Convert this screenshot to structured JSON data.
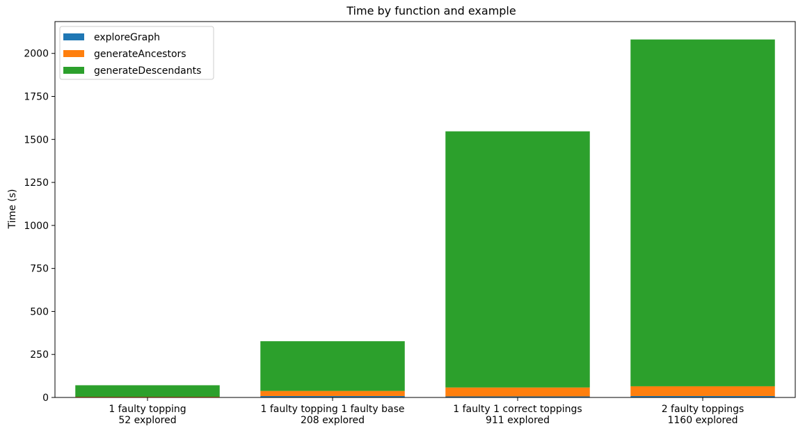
{
  "chart_data": {
    "type": "bar",
    "stacked": true,
    "title": "Time by function and example",
    "xlabel": "",
    "ylabel": "Time (s)",
    "ylim": [
      0,
      2185
    ],
    "yticks": [
      0,
      250,
      500,
      750,
      1000,
      1250,
      1500,
      1750,
      2000
    ],
    "grid": false,
    "legend_position": "top-left",
    "categories": [
      [
        "1 faulty topping",
        "52 explored"
      ],
      [
        "1 faulty topping 1 faulty base",
        "208 explored"
      ],
      [
        "1 faulty 1 correct toppings",
        "911 explored"
      ],
      [
        "2 faulty toppings",
        "1160 explored"
      ]
    ],
    "series": [
      {
        "name": "exploreGraph",
        "color": "#1f77b4",
        "values": [
          1,
          8,
          6,
          8
        ]
      },
      {
        "name": "generateAncestors",
        "color": "#ff7f0e",
        "values": [
          3,
          30,
          52,
          57
        ]
      },
      {
        "name": "generateDescendants",
        "color": "#2ca02c",
        "values": [
          67,
          289,
          1489,
          2016
        ]
      }
    ]
  }
}
